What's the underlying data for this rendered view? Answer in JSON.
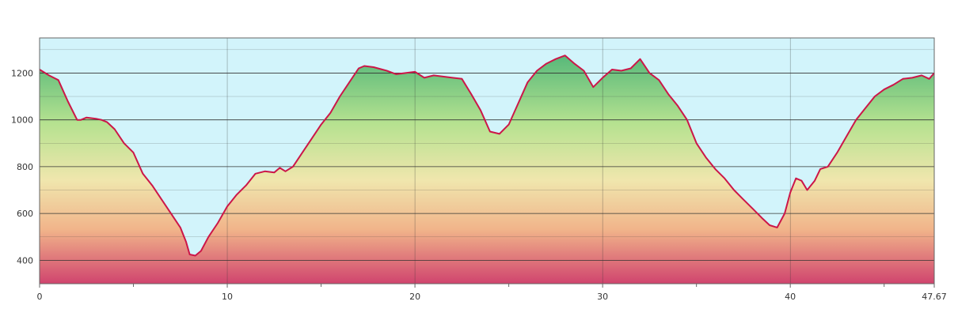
{
  "chart_data": {
    "type": "area",
    "title": "",
    "xlabel": "",
    "ylabel": "",
    "xlim": [
      0,
      47.67
    ],
    "ylim": [
      300,
      1350
    ],
    "x_ticks": [
      {
        "value": 0,
        "label": "0"
      },
      {
        "value": 10,
        "label": "10"
      },
      {
        "value": 20,
        "label": "20"
      },
      {
        "value": 30,
        "label": "30"
      },
      {
        "value": 40,
        "label": "40"
      },
      {
        "value": 47.67,
        "label": "47.67"
      }
    ],
    "x_minor_ticks": [
      5,
      15,
      25,
      35,
      45
    ],
    "y_ticks": [
      {
        "value": 400,
        "label": "400"
      },
      {
        "value": 600,
        "label": "600"
      },
      {
        "value": 800,
        "label": "800"
      },
      {
        "value": 1000,
        "label": "1000"
      },
      {
        "value": 1200,
        "label": "1200"
      }
    ],
    "y_minor_gridlines": [
      300,
      500,
      700,
      900,
      1100,
      1300
    ],
    "grid": true,
    "legend": "none",
    "series": [
      {
        "x": [
          0,
          0.5,
          1.0,
          1.5,
          2.0,
          2.2,
          2.5,
          3.0,
          3.3,
          3.6,
          4.0,
          4.5,
          5.0,
          5.5,
          6.0,
          6.5,
          7.0,
          7.5,
          7.8,
          8.0,
          8.3,
          8.6,
          9.0,
          9.5,
          10.0,
          10.5,
          11.0,
          11.5,
          12.0,
          12.5,
          12.8,
          13.1,
          13.5,
          14.0,
          14.5,
          15.0,
          15.5,
          16.0,
          16.5,
          17.0,
          17.3,
          17.8,
          18.5,
          19.0,
          19.5,
          20.0,
          20.5,
          21.0,
          21.5,
          22.0,
          22.5,
          23.0,
          23.5,
          24.0,
          24.5,
          25.0,
          25.5,
          26.0,
          26.5,
          27.0,
          27.5,
          28.0,
          28.5,
          29.0,
          29.5,
          30.0,
          30.5,
          31.0,
          31.5,
          32.0,
          32.5,
          33.0,
          33.5,
          34.0,
          34.5,
          35.0,
          35.5,
          36.0,
          36.5,
          37.0,
          37.5,
          38.0,
          38.5,
          38.9,
          39.3,
          39.7,
          40.0,
          40.3,
          40.6,
          40.9,
          41.3,
          41.6,
          42.0,
          42.5,
          43.0,
          43.5,
          44.0,
          44.5,
          45.0,
          45.5,
          46.0,
          46.5,
          47.0,
          47.4,
          47.67
        ],
        "y": [
          1215,
          1190,
          1170,
          1080,
          1000,
          1000,
          1010,
          1005,
          1000,
          990,
          960,
          900,
          860,
          770,
          720,
          660,
          600,
          540,
          480,
          425,
          420,
          440,
          500,
          560,
          630,
          680,
          720,
          770,
          780,
          775,
          795,
          780,
          800,
          860,
          920,
          980,
          1030,
          1100,
          1160,
          1220,
          1230,
          1225,
          1210,
          1195,
          1200,
          1205,
          1180,
          1190,
          1185,
          1180,
          1175,
          1110,
          1040,
          950,
          940,
          980,
          1070,
          1160,
          1210,
          1240,
          1260,
          1275,
          1240,
          1210,
          1140,
          1180,
          1215,
          1210,
          1220,
          1260,
          1200,
          1170,
          1110,
          1060,
          1000,
          900,
          840,
          790,
          750,
          700,
          660,
          620,
          580,
          550,
          540,
          600,
          690,
          750,
          740,
          700,
          740,
          790,
          800,
          860,
          930,
          1000,
          1050,
          1100,
          1130,
          1150,
          1175,
          1180,
          1190,
          1175,
          1200
        ]
      }
    ],
    "colors": {
      "sky": "#d2f4fb",
      "line": "#cc1648",
      "grid": "#333333",
      "gradient_top": "#3fae74",
      "gradient_mid_high": "#b6e290",
      "gradient_mid": "#f0e6ad",
      "gradient_low": "#f1b48a",
      "gradient_bottom": "#d0446e"
    }
  }
}
